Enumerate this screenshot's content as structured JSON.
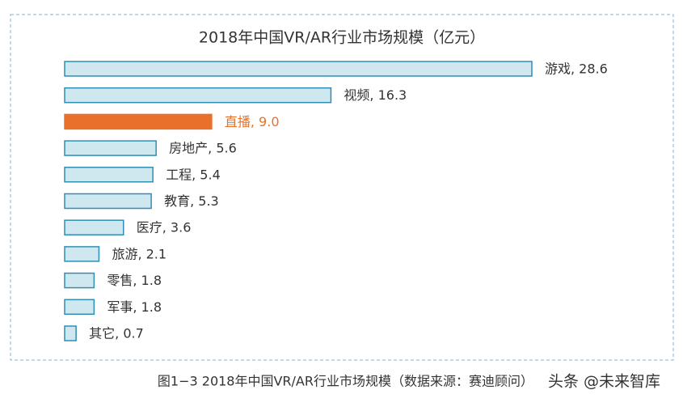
{
  "chart_data": {
    "type": "bar",
    "orientation": "horizontal",
    "title": "2018年中国VR/AR行业市场规模（亿元）",
    "values": [
      28.6,
      16.3,
      9.0,
      5.6,
      5.4,
      5.3,
      3.6,
      2.1,
      1.8,
      1.8,
      0.7
    ],
    "value_labels": [
      "游戏, 28.6",
      "视频, 16.3",
      "直播, 9.0",
      "房地产, 5.6",
      "工程, 5.4",
      "教育, 5.3",
      "医疗, 3.6",
      "旅游, 2.1",
      "零售, 1.8",
      "军事, 1.8",
      "其它, 0.7"
    ],
    "colors": [
      "#cfe7ee",
      "#cfe7ee",
      "#e8702a",
      "#cfe7ee",
      "#cfe7ee",
      "#cfe7ee",
      "#cfe7ee",
      "#cfe7ee",
      "#cfe7ee",
      "#cfe7ee",
      "#cfe7ee"
    ],
    "label_colors": [
      "#333333",
      "#333333",
      "#e8702a",
      "#333333",
      "#333333",
      "#333333",
      "#333333",
      "#333333",
      "#333333",
      "#333333",
      "#333333"
    ],
    "caption": "图1−3 2018年中国VR/AR行业市场规模（数据来源：赛迪顾问）",
    "watermark": "头条 @未来智库"
  }
}
